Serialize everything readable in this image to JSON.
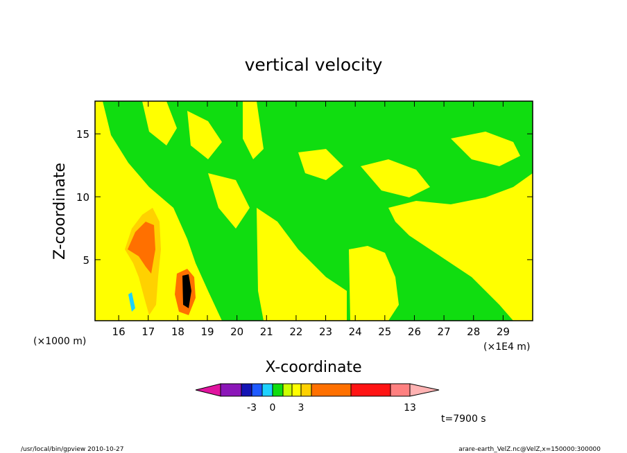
{
  "chart_data": {
    "type": "contour",
    "title": "vertical velocity",
    "xlabel": "X-coordinate",
    "ylabel": "Z-coordinate",
    "x_unit_label": "(×1E4 m)",
    "y_unit_label": "(×1000 m)",
    "xlim": [
      15.2,
      30.0
    ],
    "ylim": [
      0.15,
      17.6
    ],
    "x_ticks": [
      16,
      17,
      18,
      19,
      20,
      21,
      22,
      23,
      24,
      25,
      26,
      27,
      28,
      29
    ],
    "y_ticks": [
      5,
      10,
      15
    ],
    "x_tick_labels": [
      "16",
      "17",
      "18",
      "19",
      "20",
      "21",
      "22",
      "23",
      "24",
      "25",
      "26",
      "27",
      "28",
      "29"
    ],
    "y_tick_labels": [
      "5",
      "10",
      "15"
    ],
    "colorbar": {
      "colors": [
        "#e0149f",
        "#8b16b8",
        "#1414b4",
        "#1e5aff",
        "#1ed2ff",
        "#10dd10",
        "#ccff00",
        "#ffff00",
        "#ffd100",
        "#ff7000",
        "#ff1414",
        "#ff8080",
        "#ffb3b3"
      ],
      "labels": [
        "-3",
        "0",
        "3",
        "13"
      ]
    },
    "time_label": "t=7900 s"
  },
  "footer": {
    "program": "/usr/local/bin/gpview   2010-10-27",
    "source": "arare-earth_VelZ.nc@VelZ,x=150000:300000"
  }
}
